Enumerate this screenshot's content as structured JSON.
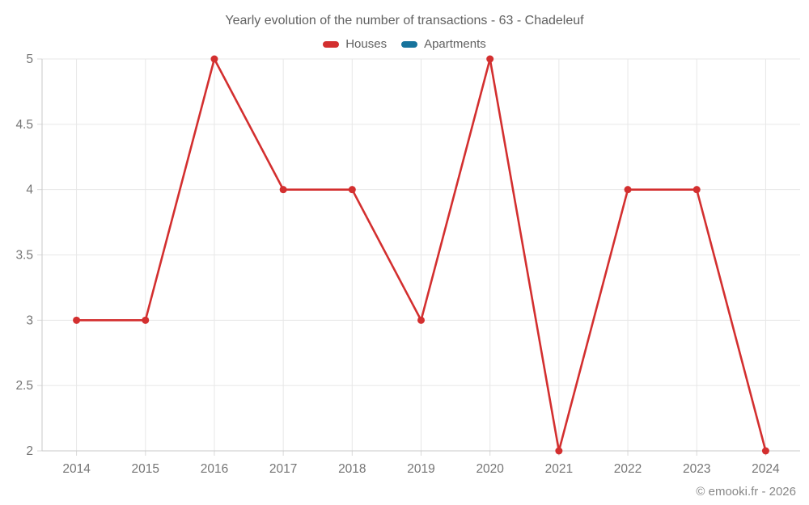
{
  "chart": {
    "title": "Yearly evolution of the number of transactions - 63 - Chadeleuf",
    "legend": [
      {
        "label": "Houses",
        "color": "#d32f2f"
      },
      {
        "label": "Apartments",
        "color": "#17739c"
      }
    ]
  },
  "footer": {
    "text": "© emooki.fr - 2026"
  },
  "chart_data": {
    "type": "line",
    "title": "Yearly evolution of the number of transactions - 63 - Chadeleuf",
    "categories": [
      "2014",
      "2015",
      "2016",
      "2017",
      "2018",
      "2019",
      "2020",
      "2021",
      "2022",
      "2023",
      "2024"
    ],
    "series": [
      {
        "name": "Houses",
        "color": "#d32f2f",
        "values": [
          3,
          3,
          5,
          4,
          4,
          3,
          5,
          2,
          4,
          4,
          2
        ]
      },
      {
        "name": "Apartments",
        "color": "#17739c",
        "values": []
      }
    ],
    "xlabel": "",
    "ylabel": "",
    "ylim": [
      2,
      5
    ],
    "ytick_step": 0.5,
    "grid": true,
    "legend_position": "top",
    "colors": {
      "grid_line": "#e7e7e7",
      "axis_line": "#c9c9c9",
      "tick_mark": "#d9d9d9",
      "tick_label": "#757575"
    }
  }
}
